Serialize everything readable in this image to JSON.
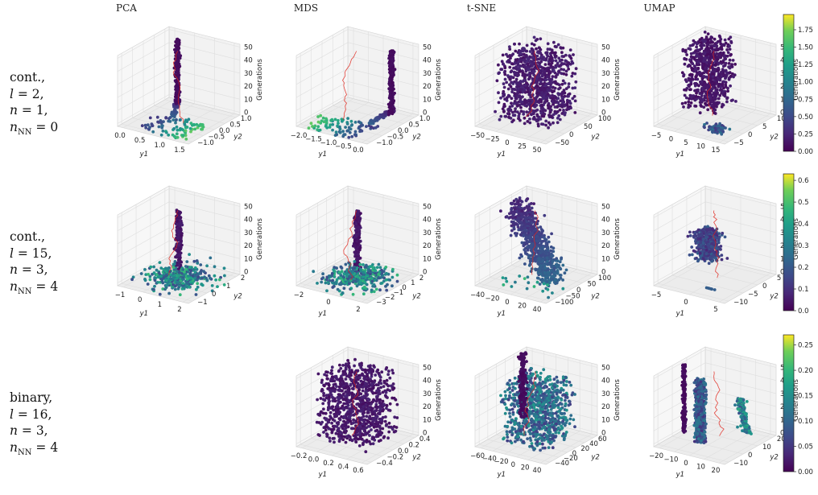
{
  "chart_data": {
    "type": "scatter3d",
    "columns": [
      "PCA",
      "MDS",
      "t-SNE",
      "UMAP"
    ],
    "zlabel": "Generations",
    "xlabel": "y1",
    "ylabel": "y2",
    "colormap": "viridis",
    "rows": [
      {
        "id": "row1",
        "label_lines": [
          "cont.,",
          "l = 2,",
          "n = 1,",
          "nNN = 0"
        ],
        "colorbar": {
          "min": 0.0,
          "max": 1.97,
          "ticks": [
            "0.00",
            "0.25",
            "0.50",
            "0.75",
            "1.00",
            "1.25",
            "1.50",
            "1.75"
          ]
        },
        "panels": [
          {
            "method": "PCA",
            "xticks": [
              "0.0",
              "0.5",
              "1.0",
              "1.5"
            ],
            "yticks": [
              "1.0",
              "0.5",
              "0.0",
              "−0.5",
              "−1.0"
            ],
            "zticks": [
              "0",
              "10",
              "20",
              "30",
              "40",
              "50"
            ],
            "xrange": [
              -0.2,
              1.9
            ],
            "yrange": [
              -1.1,
              1.2
            ],
            "zrange": [
              0,
              50
            ],
            "shape": "L-column-left"
          },
          {
            "method": "MDS",
            "xticks": [
              "−2.0",
              "−1.5",
              "−1.0",
              "−0.5",
              "0.0"
            ],
            "yticks": [
              "1.0",
              "0.5",
              "0.0",
              "−0.5",
              "−1.0"
            ],
            "zticks": [
              "0",
              "10",
              "20",
              "30",
              "40",
              "50"
            ],
            "xrange": [
              -2.2,
              0.3
            ],
            "yrange": [
              -1.1,
              1.2
            ],
            "zrange": [
              0,
              50
            ],
            "shape": "L-column-right"
          },
          {
            "method": "t-SNE",
            "xticks": [
              "−50",
              "−25",
              "0",
              "25",
              "50"
            ],
            "yticks": [
              "100",
              "50",
              "0",
              "−50"
            ],
            "zticks": [
              "0",
              "10",
              "20",
              "30",
              "40",
              "50"
            ],
            "xrange": [
              -65,
              65
            ],
            "yrange": [
              -80,
              120
            ],
            "zrange": [
              0,
              50
            ],
            "shape": "block"
          },
          {
            "method": "UMAP",
            "xticks": [
              "−5",
              "0",
              "5",
              "10",
              "15"
            ],
            "yticks": [
              "10",
              "5",
              "0",
              "−5"
            ],
            "zticks": [
              "0",
              "10",
              "20",
              "30",
              "40",
              "50"
            ],
            "xrange": [
              -8,
              16
            ],
            "yrange": [
              -8,
              12
            ],
            "zrange": [
              0,
              50
            ],
            "shape": "block-plus-cluster"
          }
        ]
      },
      {
        "id": "row2",
        "label_lines": [
          "cont.,",
          "l = 15,",
          "n = 3,",
          "nNN = 4"
        ],
        "colorbar": {
          "min": 0.0,
          "max": 0.63,
          "ticks": [
            "0.0",
            "0.1",
            "0.2",
            "0.3",
            "0.4",
            "0.5",
            "0.6"
          ]
        },
        "panels": [
          {
            "method": "PCA",
            "xticks": [
              "−1",
              "0",
              "1",
              "2"
            ],
            "yticks": [
              "2",
              "1",
              "0",
              "−1"
            ],
            "zticks": [
              "0",
              "10",
              "20",
              "30",
              "40",
              "50"
            ],
            "xrange": [
              -1.6,
              2.4
            ],
            "yrange": [
              -1.6,
              2.6
            ],
            "zrange": [
              0,
              50
            ],
            "shape": "spike"
          },
          {
            "method": "MDS",
            "xticks": [
              "−2",
              "0",
              "2"
            ],
            "yticks": [
              "2",
              "1",
              "0",
              "−1",
              "−2",
              "−3"
            ],
            "zticks": [
              "0",
              "10",
              "20",
              "30",
              "40",
              "50"
            ],
            "xrange": [
              -3.2,
              3.2
            ],
            "yrange": [
              -3.4,
              2.6
            ],
            "zrange": [
              0,
              50
            ],
            "shape": "spike"
          },
          {
            "method": "t-SNE",
            "xticks": [
              "−40",
              "−20",
              "0",
              "20",
              "40"
            ],
            "yticks": [
              "100",
              "50",
              "0",
              "−50",
              "−100"
            ],
            "zticks": [
              "0",
              "10",
              "20",
              "30",
              "40",
              "50"
            ],
            "xrange": [
              -50,
              50
            ],
            "yrange": [
              -110,
              110
            ],
            "zrange": [
              0,
              50
            ],
            "shape": "diagonal"
          },
          {
            "method": "UMAP",
            "xticks": [
              "−5",
              "0",
              "5"
            ],
            "yticks": [
              "5",
              "0",
              "−5",
              "−10"
            ],
            "zticks": [
              "0",
              "10",
              "20",
              "30",
              "40",
              "50"
            ],
            "xrange": [
              -8,
              9
            ],
            "yrange": [
              -11,
              7
            ],
            "zrange": [
              0,
              50
            ],
            "shape": "blob"
          }
        ]
      },
      {
        "id": "row3",
        "label_lines": [
          "binary,",
          "l = 16,",
          "n = 3,",
          "nNN = 4"
        ],
        "colorbar": {
          "min": 0.0,
          "max": 0.27,
          "ticks": [
            "0.00",
            "0.05",
            "0.10",
            "0.15",
            "0.20",
            "0.25"
          ]
        },
        "panels": [
          null,
          {
            "method": "MDS",
            "xticks": [
              "−0.2",
              "0.0",
              "0.2",
              "0.4",
              "0.6"
            ],
            "yticks": [
              "0.4",
              "0.2",
              "0.0",
              "−0.2",
              "−0.4"
            ],
            "zticks": [
              "0",
              "10",
              "20",
              "30",
              "40",
              "50"
            ],
            "xrange": [
              -0.35,
              0.7
            ],
            "yrange": [
              -0.5,
              0.5
            ],
            "zrange": [
              0,
              50
            ],
            "shape": "block"
          },
          {
            "method": "t-SNE",
            "xticks": [
              "−60",
              "−40",
              "−20",
              "0",
              "20",
              "40"
            ],
            "yticks": [
              "60",
              "40",
              "20",
              "0",
              "−20",
              "−40"
            ],
            "zticks": [
              "0",
              "10",
              "20",
              "30",
              "40",
              "50"
            ],
            "xrange": [
              -70,
              45
            ],
            "yrange": [
              -50,
              65
            ],
            "zrange": [
              0,
              50
            ],
            "shape": "block-with-strand"
          },
          {
            "method": "UMAP",
            "xticks": [
              "−20",
              "−10",
              "0",
              "10",
              "20"
            ],
            "yticks": [
              "20",
              "10",
              "0",
              "−10"
            ],
            "zticks": [
              "0",
              "10",
              "20",
              "30",
              "40",
              "50"
            ],
            "xrange": [
              -25,
              25
            ],
            "yrange": [
              -15,
              25
            ],
            "zrange": [
              0,
              50
            ],
            "shape": "strand-slab-curve"
          }
        ]
      }
    ]
  }
}
